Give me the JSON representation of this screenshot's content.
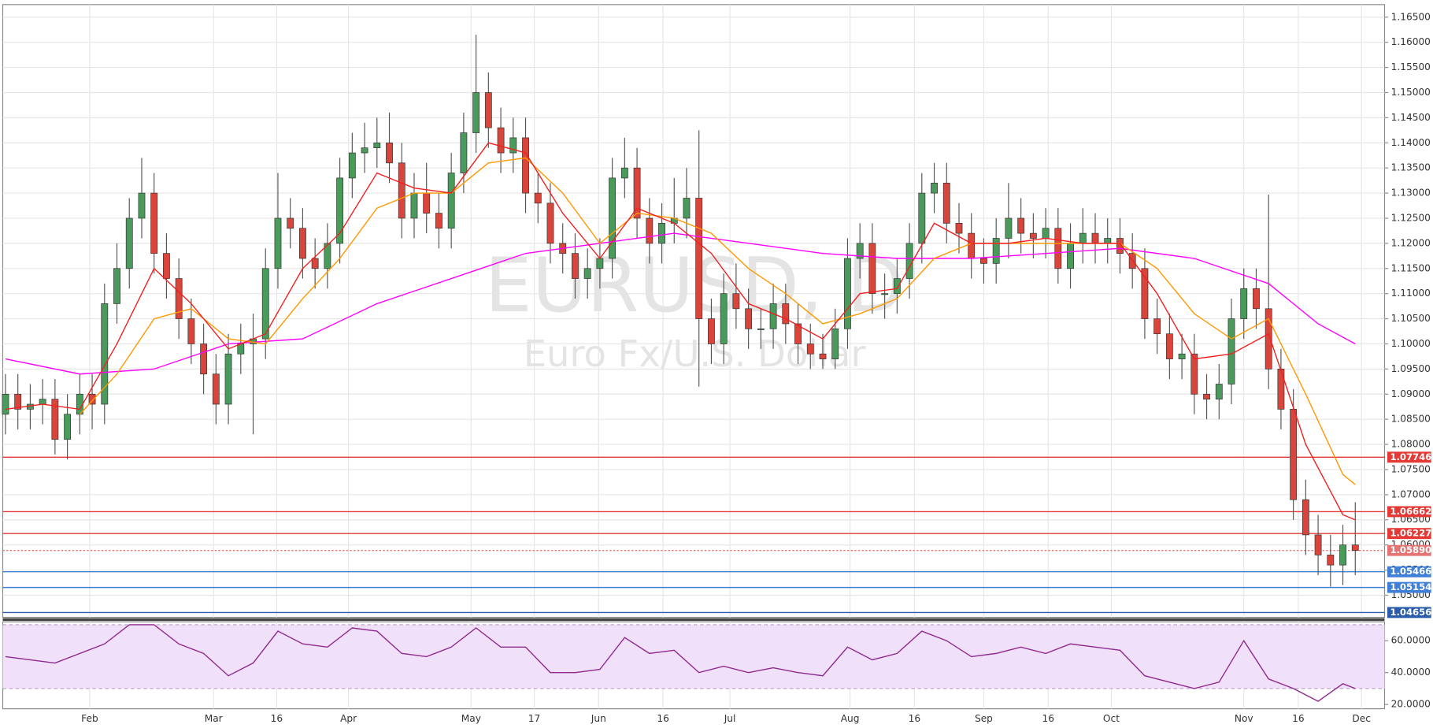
{
  "chart_data": {
    "type": "candlestick",
    "title": "EURUSD, D",
    "subtitle": "Euro Fx/U.S. Dollar",
    "up_color": "#4a9a5c",
    "down_color": "#d9453a",
    "wick_color": "#555555",
    "grid": true,
    "ylim": [
      1.0456,
      1.1675
    ],
    "yticks": [
      {
        "value": 1.05,
        "label": "1.05000"
      },
      {
        "value": 1.055,
        "label": "1.05500"
      },
      {
        "value": 1.06,
        "label": "1.06000"
      },
      {
        "value": 1.065,
        "label": "1.06500"
      },
      {
        "value": 1.07,
        "label": "1.07000"
      },
      {
        "value": 1.075,
        "label": "1.07500"
      },
      {
        "value": 1.08,
        "label": "1.08000"
      },
      {
        "value": 1.085,
        "label": "1.08500"
      },
      {
        "value": 1.09,
        "label": "1.09000"
      },
      {
        "value": 1.095,
        "label": "1.09500"
      },
      {
        "value": 1.1,
        "label": "1.10000"
      },
      {
        "value": 1.105,
        "label": "1.10500"
      },
      {
        "value": 1.11,
        "label": "1.11000"
      },
      {
        "value": 1.115,
        "label": "1.11500"
      },
      {
        "value": 1.12,
        "label": "1.12000"
      },
      {
        "value": 1.125,
        "label": "1.12500"
      },
      {
        "value": 1.13,
        "label": "1.13000"
      },
      {
        "value": 1.135,
        "label": "1.13500"
      },
      {
        "value": 1.14,
        "label": "1.14000"
      },
      {
        "value": 1.145,
        "label": "1.14500"
      },
      {
        "value": 1.15,
        "label": "1.15000"
      },
      {
        "value": 1.155,
        "label": "1.15500"
      },
      {
        "value": 1.16,
        "label": "1.16000"
      },
      {
        "value": 1.165,
        "label": "1.16500"
      }
    ],
    "xticks": [
      {
        "value": 6.8,
        "label": "Feb"
      },
      {
        "value": 16.8,
        "label": "Mar"
      },
      {
        "value": 21.9,
        "label": "16"
      },
      {
        "value": 27.7,
        "label": "Apr"
      },
      {
        "value": 37.6,
        "label": "May"
      },
      {
        "value": 42.7,
        "label": "17"
      },
      {
        "value": 47.9,
        "label": "Jun"
      },
      {
        "value": 53.1,
        "label": "16"
      },
      {
        "value": 58.5,
        "label": "Jul"
      },
      {
        "value": 68.2,
        "label": "Aug"
      },
      {
        "value": 73.4,
        "label": "16"
      },
      {
        "value": 79.0,
        "label": "Sep"
      },
      {
        "value": 84.2,
        "label": "16"
      },
      {
        "value": 89.3,
        "label": "Oct"
      },
      {
        "value": 100.0,
        "label": "Nov"
      },
      {
        "value": 104.4,
        "label": "16"
      },
      {
        "value": 109.5,
        "label": "Dec"
      }
    ],
    "open": [
      1.086,
      1.09,
      1.087,
      1.088,
      1.089,
      1.081,
      1.086,
      1.09,
      1.088,
      1.108,
      1.115,
      1.125,
      1.13,
      1.118,
      1.113,
      1.105,
      1.1,
      1.094,
      1.088,
      1.098,
      1.1,
      1.101,
      1.115,
      1.125,
      1.123,
      1.117,
      1.115,
      1.12,
      1.133,
      1.138,
      1.139,
      1.14,
      1.136,
      1.125,
      1.13,
      1.126,
      1.123,
      1.134,
      1.142,
      1.15,
      1.143,
      1.138,
      1.141,
      1.13,
      1.128,
      1.12,
      1.118,
      1.113,
      1.115,
      1.117,
      1.133,
      1.135,
      1.125,
      1.12,
      1.124,
      1.125,
      1.129,
      1.105,
      1.1,
      1.11,
      1.107,
      1.103,
      1.103,
      1.108,
      1.104,
      1.1,
      1.098,
      1.097,
      1.103,
      1.117,
      1.12,
      1.11,
      1.11,
      1.113,
      1.12,
      1.13,
      1.132,
      1.124,
      1.122,
      1.117,
      1.116,
      1.121,
      1.125,
      1.122,
      1.121,
      1.123,
      1.115,
      1.12,
      1.122,
      1.12,
      1.121,
      1.118,
      1.115,
      1.105,
      1.102,
      1.097,
      1.098,
      1.09,
      1.089,
      1.092,
      1.105,
      1.111,
      1.107,
      1.095,
      1.087,
      1.069,
      1.062,
      1.058,
      1.056,
      1.06
    ],
    "high": [
      1.094,
      1.094,
      1.092,
      1.093,
      1.093,
      1.09,
      1.094,
      1.094,
      1.112,
      1.12,
      1.129,
      1.137,
      1.134,
      1.122,
      1.117,
      1.109,
      1.104,
      1.098,
      1.102,
      1.104,
      1.106,
      1.119,
      1.134,
      1.129,
      1.127,
      1.121,
      1.124,
      1.137,
      1.142,
      1.144,
      1.145,
      1.146,
      1.14,
      1.134,
      1.136,
      1.13,
      1.138,
      1.146,
      1.1615,
      1.154,
      1.147,
      1.145,
      1.145,
      1.134,
      1.132,
      1.124,
      1.122,
      1.119,
      1.121,
      1.137,
      1.141,
      1.139,
      1.129,
      1.128,
      1.133,
      1.135,
      1.1425,
      1.109,
      1.114,
      1.116,
      1.111,
      1.107,
      1.112,
      1.112,
      1.108,
      1.104,
      1.102,
      1.107,
      1.121,
      1.124,
      1.124,
      1.114,
      1.117,
      1.124,
      1.134,
      1.136,
      1.136,
      1.128,
      1.126,
      1.121,
      1.125,
      1.132,
      1.129,
      1.126,
      1.127,
      1.127,
      1.124,
      1.127,
      1.126,
      1.125,
      1.125,
      1.122,
      1.119,
      1.109,
      1.106,
      1.102,
      1.102,
      1.094,
      1.096,
      1.109,
      1.115,
      1.115,
      1.1297,
      1.099,
      1.091,
      1.073,
      1.066,
      1.062,
      1.064,
      1.0685
    ],
    "low": [
      1.082,
      1.083,
      1.083,
      1.084,
      1.078,
      1.077,
      1.082,
      1.083,
      1.084,
      1.104,
      1.111,
      1.121,
      1.114,
      1.109,
      1.101,
      1.096,
      1.09,
      1.084,
      1.084,
      1.094,
      1.082,
      1.097,
      1.111,
      1.119,
      1.113,
      1.111,
      1.111,
      1.116,
      1.129,
      1.134,
      1.135,
      1.132,
      1.121,
      1.121,
      1.122,
      1.119,
      1.119,
      1.13,
      1.138,
      1.139,
      1.134,
      1.134,
      1.126,
      1.124,
      1.116,
      1.114,
      1.109,
      1.109,
      1.111,
      1.113,
      1.129,
      1.121,
      1.116,
      1.116,
      1.12,
      1.121,
      1.0915,
      1.096,
      1.096,
      1.103,
      1.099,
      1.099,
      1.099,
      1.1,
      1.096,
      1.095,
      1.095,
      1.095,
      1.099,
      1.113,
      1.106,
      1.105,
      1.106,
      1.109,
      1.116,
      1.126,
      1.12,
      1.118,
      1.113,
      1.112,
      1.112,
      1.117,
      1.118,
      1.117,
      1.117,
      1.112,
      1.111,
      1.116,
      1.116,
      1.116,
      1.114,
      1.111,
      1.101,
      1.098,
      1.093,
      1.093,
      1.086,
      1.085,
      1.085,
      1.088,
      1.101,
      1.103,
      1.091,
      1.083,
      1.065,
      1.058,
      1.054,
      1.0517,
      1.052,
      1.054
    ],
    "close": [
      1.09,
      1.087,
      1.088,
      1.089,
      1.081,
      1.086,
      1.09,
      1.088,
      1.108,
      1.115,
      1.125,
      1.13,
      1.118,
      1.113,
      1.105,
      1.1,
      1.094,
      1.088,
      1.098,
      1.1,
      1.101,
      1.115,
      1.125,
      1.123,
      1.117,
      1.115,
      1.12,
      1.133,
      1.138,
      1.139,
      1.14,
      1.136,
      1.125,
      1.13,
      1.126,
      1.123,
      1.134,
      1.142,
      1.15,
      1.143,
      1.138,
      1.141,
      1.13,
      1.128,
      1.12,
      1.118,
      1.113,
      1.115,
      1.117,
      1.133,
      1.135,
      1.125,
      1.12,
      1.124,
      1.125,
      1.129,
      1.105,
      1.1,
      1.11,
      1.107,
      1.103,
      1.103,
      1.108,
      1.104,
      1.1,
      1.098,
      1.097,
      1.103,
      1.117,
      1.12,
      1.11,
      1.11,
      1.113,
      1.12,
      1.13,
      1.132,
      1.124,
      1.122,
      1.117,
      1.116,
      1.121,
      1.125,
      1.122,
      1.121,
      1.123,
      1.115,
      1.12,
      1.122,
      1.12,
      1.121,
      1.118,
      1.115,
      1.105,
      1.102,
      1.097,
      1.098,
      1.09,
      1.089,
      1.092,
      1.105,
      1.111,
      1.107,
      1.095,
      1.087,
      1.069,
      1.062,
      1.058,
      1.056,
      1.06,
      1.0589
    ],
    "lines": [
      {
        "color": "#ff00ff",
        "x": [
          0,
          6,
          12,
          18,
          24,
          30,
          36,
          42,
          48,
          54,
          60,
          66,
          72,
          78,
          84,
          90,
          96,
          102,
          106,
          109
        ],
        "values": [
          1.097,
          1.094,
          1.095,
          1.1,
          1.101,
          1.108,
          1.113,
          1.118,
          1.12,
          1.122,
          1.12,
          1.118,
          1.117,
          1.117,
          1.118,
          1.119,
          1.117,
          1.112,
          1.104,
          1.1
        ]
      },
      {
        "color": "#ff9800",
        "x": [
          6,
          9,
          12,
          15,
          18,
          21,
          24,
          27,
          30,
          33,
          36,
          39,
          42,
          45,
          48,
          51,
          54,
          57,
          60,
          63,
          66,
          69,
          72,
          75,
          78,
          81,
          84,
          87,
          90,
          93,
          96,
          99,
          102,
          105,
          108,
          109
        ],
        "values": [
          1.086,
          1.094,
          1.105,
          1.107,
          1.101,
          1.1,
          1.109,
          1.117,
          1.127,
          1.13,
          1.13,
          1.136,
          1.137,
          1.13,
          1.12,
          1.126,
          1.125,
          1.122,
          1.115,
          1.11,
          1.104,
          1.106,
          1.109,
          1.117,
          1.12,
          1.12,
          1.12,
          1.12,
          1.12,
          1.115,
          1.106,
          1.101,
          1.105,
          1.09,
          1.074,
          1.072
        ]
      },
      {
        "color": "#f02020",
        "x": [
          0,
          3,
          6,
          9,
          12,
          15,
          18,
          21,
          24,
          27,
          30,
          33,
          36,
          39,
          42,
          45,
          48,
          51,
          54,
          57,
          60,
          63,
          66,
          69,
          72,
          75,
          78,
          81,
          84,
          87,
          90,
          93,
          96,
          99,
          102,
          105,
          108,
          109
        ],
        "values": [
          1.087,
          1.088,
          1.087,
          1.1,
          1.115,
          1.108,
          1.099,
          1.102,
          1.115,
          1.122,
          1.134,
          1.131,
          1.13,
          1.14,
          1.138,
          1.126,
          1.117,
          1.127,
          1.124,
          1.118,
          1.108,
          1.105,
          1.101,
          1.11,
          1.111,
          1.124,
          1.12,
          1.12,
          1.121,
          1.12,
          1.12,
          1.11,
          1.097,
          1.098,
          1.102,
          1.08,
          1.066,
          1.065
        ]
      }
    ],
    "levels": [
      {
        "value": 1.07746,
        "label": "1.07746",
        "color": "#e53935",
        "dotted": false
      },
      {
        "value": 1.06662,
        "label": "1.06662",
        "color": "#e53935",
        "dotted": false
      },
      {
        "value": 1.06227,
        "label": "1.06227",
        "color": "#e53935",
        "dotted": false
      },
      {
        "value": 1.0589,
        "label": "1.05890",
        "color": "#e57373",
        "dotted": true
      },
      {
        "value": 1.05466,
        "label": "1.05466",
        "color": "#3f7fd8",
        "dotted": false
      },
      {
        "value": 1.05154,
        "label": "1.05154",
        "color": "#3f7fd8",
        "dotted": false
      },
      {
        "value": 1.04656,
        "label": "1.04656",
        "color": "#2a5caa",
        "dotted": false
      }
    ],
    "rsi": {
      "type": "line",
      "color": "#8e2a8e",
      "band_color": "#f1e0fa",
      "ylim": [
        17.3,
        71.8
      ],
      "band": [
        30,
        70
      ],
      "yticks": [
        {
          "value": 20,
          "label": "20.0000"
        },
        {
          "value": 40,
          "label": "40.0000"
        },
        {
          "value": 60,
          "label": "60.0000"
        }
      ],
      "x": [
        0,
        4,
        8,
        10,
        12,
        14,
        16,
        18,
        20,
        22,
        24,
        26,
        28,
        30,
        32,
        34,
        36,
        38,
        40,
        42,
        44,
        46,
        48,
        50,
        52,
        54,
        56,
        58,
        60,
        62,
        64,
        66,
        68,
        70,
        72,
        74,
        76,
        78,
        80,
        82,
        84,
        86,
        88,
        90,
        92,
        94,
        96,
        98,
        100,
        102,
        104,
        106,
        108,
        109
      ],
      "values": [
        50,
        46,
        58,
        70,
        70,
        58,
        52,
        38,
        46,
        66,
        58,
        56,
        68,
        66,
        52,
        50,
        56,
        68,
        56,
        56,
        40,
        40,
        42,
        62,
        52,
        54,
        40,
        44,
        40,
        43,
        40,
        38,
        56,
        48,
        52,
        66,
        60,
        50,
        52,
        56,
        52,
        58,
        56,
        54,
        38,
        34,
        30,
        34,
        60,
        36,
        30,
        22,
        33,
        30
      ]
    }
  }
}
